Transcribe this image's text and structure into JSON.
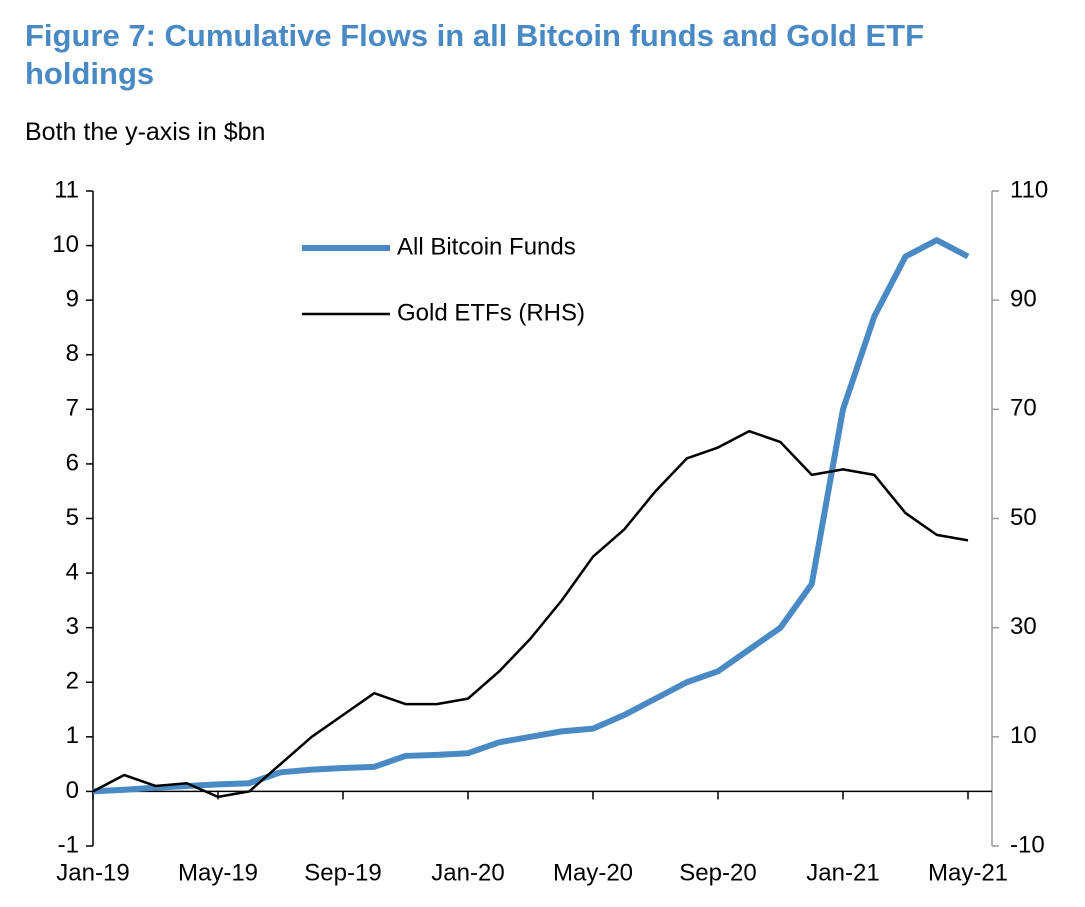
{
  "chart_data": {
    "type": "line",
    "title": "Figure 7: Cumulative Flows in all Bitcoin funds and Gold ETF holdings",
    "subtitle": "Both the y-axis in $bn",
    "categories": [
      "Jan-19",
      null,
      null,
      null,
      "May-19",
      null,
      null,
      null,
      "Sep-19",
      null,
      null,
      null,
      "Jan-20",
      null,
      null,
      null,
      "May-20",
      null,
      null,
      null,
      "Sep-20",
      null,
      null,
      null,
      "Jan-21",
      null,
      null,
      null,
      "May-21"
    ],
    "series": [
      {
        "name": "All Bitcoin Funds",
        "color": "#4a8ac4",
        "axis": "y",
        "values": [
          0,
          0.03,
          0.07,
          0.1,
          0.13,
          0.15,
          0.35,
          0.4,
          0.43,
          0.45,
          0.65,
          0.67,
          0.7,
          0.9,
          1.0,
          1.1,
          1.15,
          1.4,
          1.7,
          2.0,
          2.2,
          2.6,
          3.0,
          3.8,
          7.0,
          8.7,
          9.8,
          10.1,
          9.8
        ]
      },
      {
        "name": "Gold ETFs (RHS)",
        "color": "#000000",
        "axis": "y2",
        "values": [
          0,
          3,
          1,
          1.5,
          -1,
          0,
          5,
          10,
          14,
          18,
          16,
          16,
          17,
          22,
          28,
          35,
          43,
          48,
          55,
          61,
          63,
          66,
          64,
          58,
          59,
          58,
          51,
          47,
          46
        ]
      }
    ],
    "ylim": [
      -1,
      11
    ],
    "yticks": [
      -1,
      0,
      1,
      2,
      3,
      4,
      5,
      6,
      7,
      8,
      9,
      10,
      11
    ],
    "y2lim": [
      -10,
      110
    ],
    "y2ticks": [
      -10,
      10,
      30,
      50,
      70,
      90,
      110
    ],
    "legend": "top"
  }
}
